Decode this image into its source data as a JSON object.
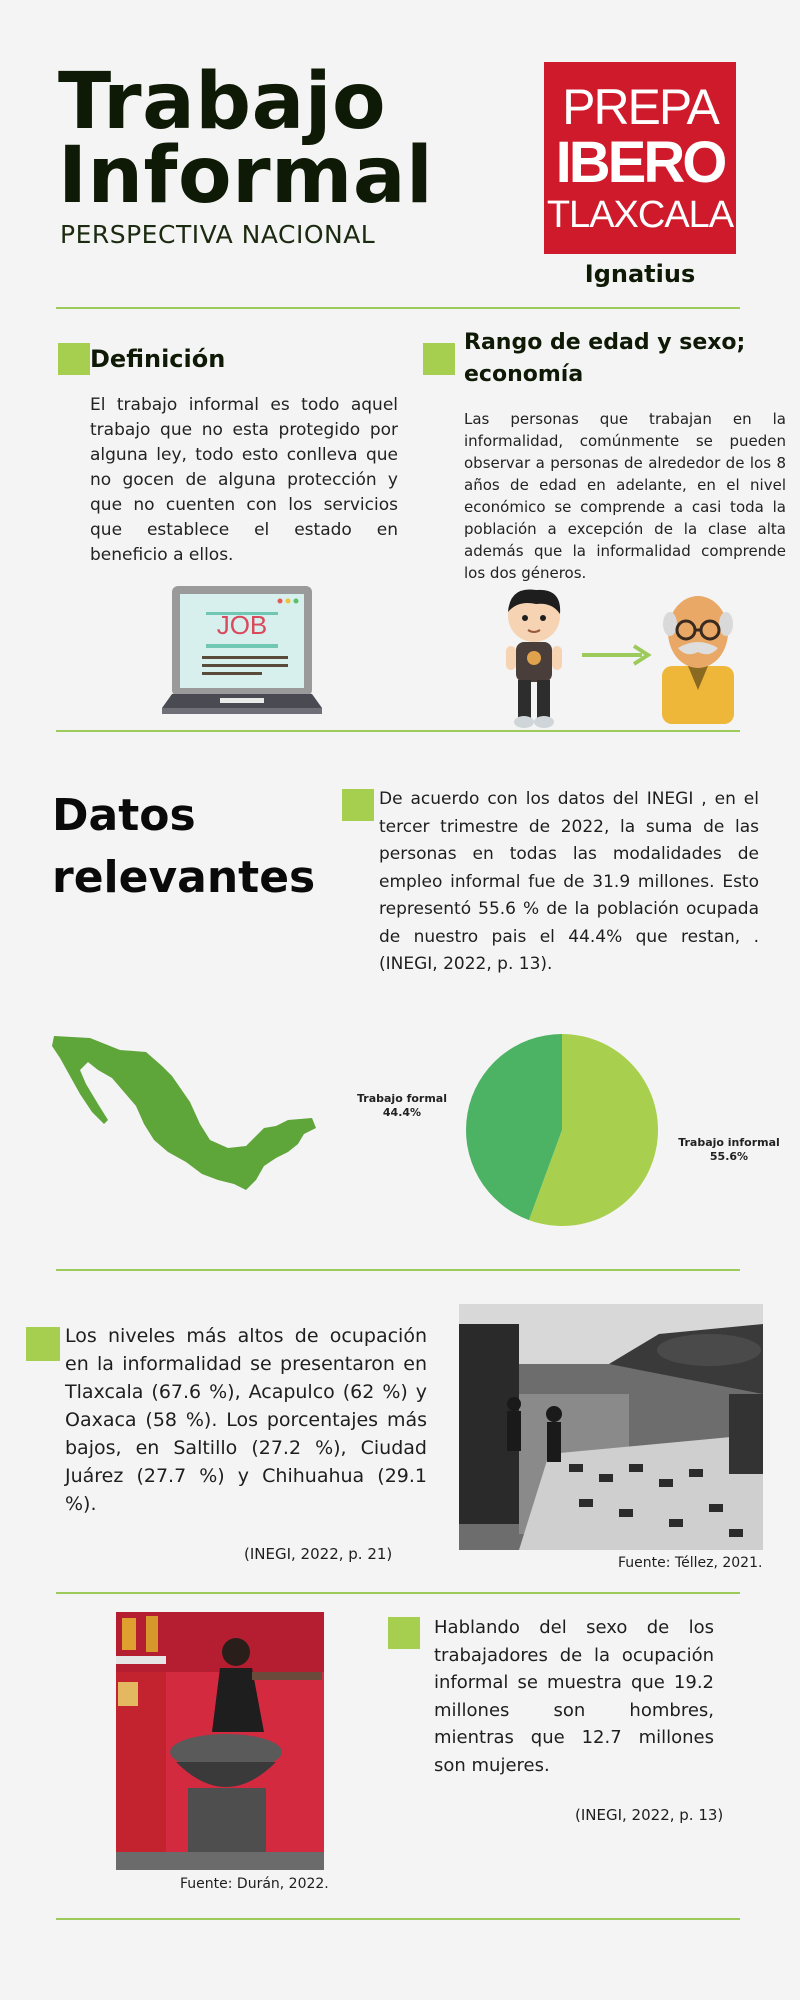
{
  "header": {
    "title_line1": "Trabajo",
    "title_line2": "Informal",
    "subtitle": "PERSPECTIVA NACIONAL",
    "logo_line1": "PREPA",
    "logo_line2": "IBERO",
    "logo_line3": "TLAXCALA",
    "logo_caption": "Ignatius"
  },
  "definition": {
    "heading": "Definición",
    "body": "El trabajo informal es todo aquel trabajo que no esta protegido por alguna ley, todo esto conlleva que no gocen de alguna protección y que no cuenten con los servicios que establece el estado en beneficio a ellos.",
    "laptop_text": "JOB"
  },
  "age_sex": {
    "heading_line1": "Rango de edad y sexo;",
    "heading_line2": "economía",
    "body": "Las personas que trabajan en la informalidad, comúnmente se pueden observar a personas de alrededor de los 8 años de edad en adelante, en el nivel económico se comprende a casi toda la población a excepción de la clase alta además que la informalidad comprende los dos géneros."
  },
  "relevant": {
    "heading_line1": "Datos",
    "heading_line2": "relevantes",
    "body": "De acuerdo con los datos del INEGI , en el tercer trimestre de 2022, la suma de las personas en todas las modalidades de empleo informal fue de 31.9 millones. Esto representó 55.6 % de la población ocupada de nuestro pais el 44.4% que restan, . (INEGI, 2022, p. 13)."
  },
  "chart_data": {
    "type": "pie",
    "slices": [
      {
        "label": "Trabajo informal",
        "value_label": "55.6%",
        "value": 55.6,
        "color": "#a8d04e"
      },
      {
        "label": "Trabajo formal",
        "value_label": "44.4%",
        "value": 44.4,
        "color": "#4cb264"
      }
    ]
  },
  "levels": {
    "body": "Los niveles más altos de ocupación en la informalidad se presentaron en Tlaxcala (67.6 %), Acapulco (62 %) y Oaxaca (58 %). Los porcentajes más bajos, en Saltillo (27.2 %), Ciudad Juárez (27.7 %) y Chihuahua (29.1 %).",
    "citation": "(INEGI, 2022, p. 21)",
    "photo_caption": "Fuente: Téllez, 2021."
  },
  "gender": {
    "body": "Hablando del sexo de los trabajadores de la ocupación informal se muestra que 19.2 millones son hombres, mientras que 12.7 millones son mujeres.",
    "citation": "(INEGI, 2022, p. 13)",
    "photo_caption": "Fuente: Durán, 2022."
  },
  "colors": {
    "accent": "#a6cf4f",
    "rule": "#9ccb5b",
    "logo_red": "#ce1a2b",
    "map_green": "#5ea53a"
  }
}
